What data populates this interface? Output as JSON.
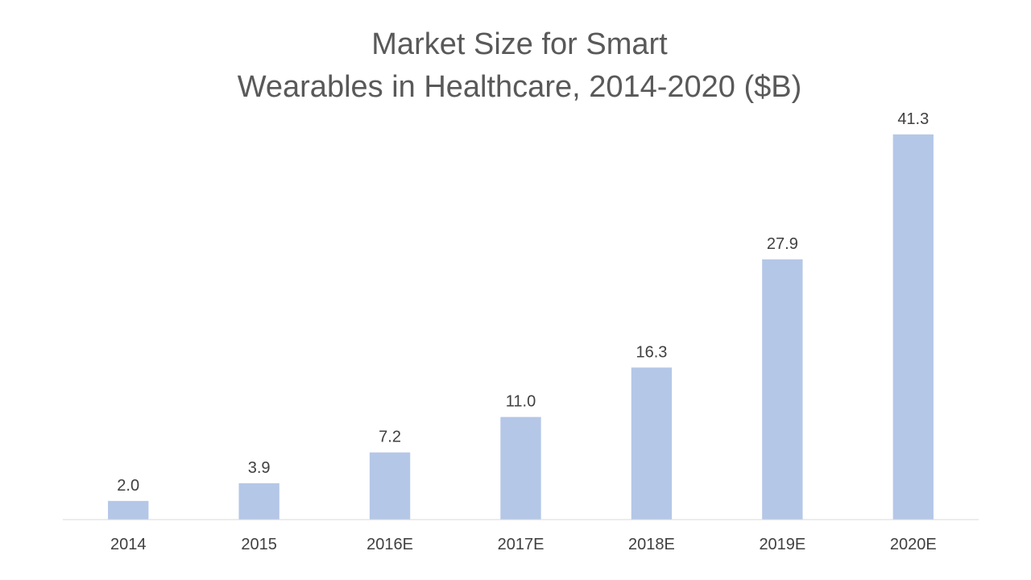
{
  "chart_data": {
    "type": "bar",
    "title": [
      "Market Size for Smart",
      "Wearables in Healthcare, 2014-2020 ($B)"
    ],
    "categories": [
      "2014",
      "2015",
      "2016E",
      "2017E",
      "2018E",
      "2019E",
      "2020E"
    ],
    "values": [
      2.0,
      3.9,
      7.2,
      11.0,
      16.3,
      27.9,
      41.3
    ],
    "value_labels": [
      "2.0",
      "3.9",
      "7.2",
      "11.0",
      "16.3",
      "27.9",
      "41.3"
    ],
    "xlabel": "",
    "ylabel": "",
    "ylim": [
      0,
      45
    ],
    "y_axis_visible": false,
    "grid": false,
    "legend": "none",
    "colors": {
      "bar": "#b4c7e7",
      "axis": "#d9d9d9",
      "title": "#595959",
      "labels": "#404040"
    }
  }
}
